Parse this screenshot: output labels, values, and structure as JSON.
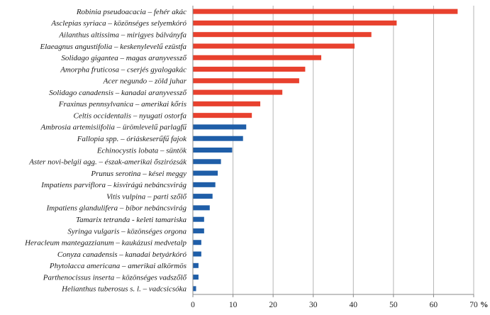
{
  "chart_data": {
    "type": "bar",
    "orientation": "horizontal",
    "categories": [
      "Robinia pseudoacacia – fehér akác",
      "Asclepias syriaca – közönséges selyemkóró",
      "Ailanthus altissima – mirigyes bálványfa",
      "Elaeagnus angustifolia – keskenylevelű ezüstfa",
      "Solidago gigantea – magas aranyvessző",
      "Amorpha fruticosa – cserjés gyalogakác",
      "Acer negundo – zöld juhar",
      "Solidago canadensis – kanadai aranyvessző",
      "Fraxinus pennsylvanica – amerikai kőris",
      "Celtis occidentalis – nyugati ostorfa",
      "Ambrosia artemisiifolia – ürömlevelű parlagfű",
      "Fallopia spp. – óriáskeserűfű fajok",
      "Echinocystis lobata – süntök",
      "Aster novi-belgii agg. – észak-amerikai őszirózsák",
      "Prunus serotina – kései meggy",
      "Impatiens parviflora – kisvirágú nebáncsvirág",
      "Vitis vulpina – parti szőlő",
      "Impatiens glandulifera – bíbor nebáncsvirág",
      "Tamarix tetranda - keleti tamariska",
      "Syringa vulgaris – közönséges orgona",
      "Heracleum mantegazzianum – kaukázusi medvetalp",
      "Conyza canadensis – kanadai betyárkóró",
      "Phytolacca americana – amerikai alkörmös",
      "Parthenocissus inserta – közönséges vadszőlő",
      "Helianthus tuberosus s. l. – vadcsicsóka"
    ],
    "values": [
      66,
      50.8,
      44.5,
      40.3,
      32,
      28,
      26.5,
      22.3,
      16.8,
      14.7,
      13.3,
      12.5,
      9.8,
      7,
      6.2,
      5.6,
      4.9,
      4.2,
      2.8,
      2.8,
      2.1,
      2.1,
      1.4,
      1.4,
      0.8
    ],
    "bar_colors": [
      "#e8412e",
      "#e8412e",
      "#e8412e",
      "#e8412e",
      "#e8412e",
      "#e8412e",
      "#e8412e",
      "#e8412e",
      "#e8412e",
      "#e8412e",
      "#1f5ea8",
      "#1f5ea8",
      "#1f5ea8",
      "#1f5ea8",
      "#1f5ea8",
      "#1f5ea8",
      "#1f5ea8",
      "#1f5ea8",
      "#1f5ea8",
      "#1f5ea8",
      "#1f5ea8",
      "#1f5ea8",
      "#1f5ea8",
      "#1f5ea8",
      "#1f5ea8"
    ],
    "xlim": [
      0,
      70
    ],
    "x_ticks": [
      "0",
      "10",
      "20",
      "30",
      "40",
      "50",
      "60",
      "70"
    ],
    "x_unit": "%",
    "grid": "vertical gridlines",
    "legend": "none"
  }
}
